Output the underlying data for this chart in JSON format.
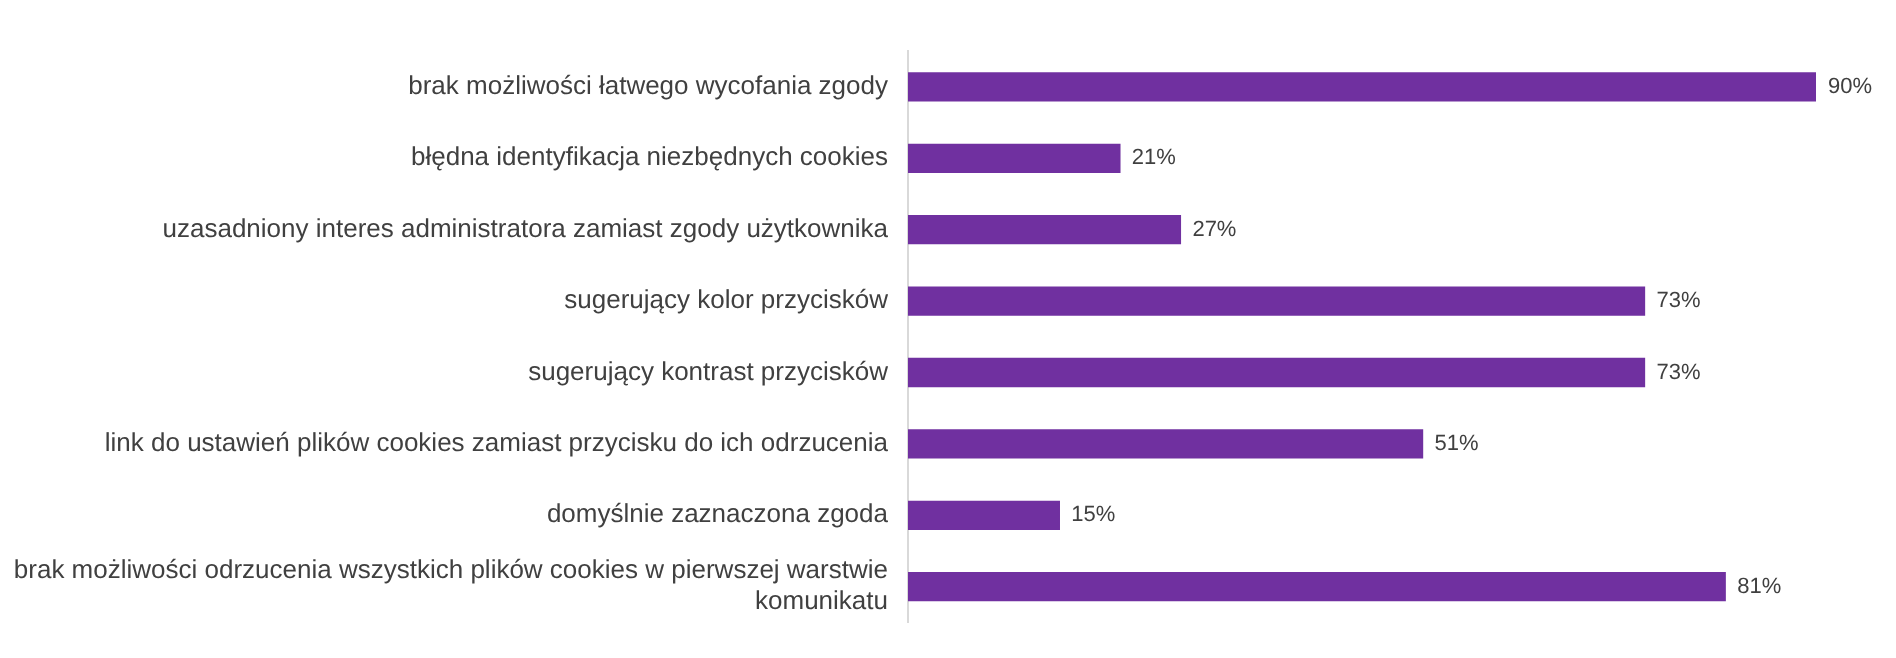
{
  "chart_data": {
    "type": "bar",
    "orientation": "horizontal",
    "categories": [
      "brak możliwości łatwego wycofania zgody",
      "błędna identyfikacja niezbędnych cookies",
      "uzasadniony interes administratora zamiast zgody użytkownika",
      "sugerujący kolor przycisków",
      "sugerujący kontrast przycisków",
      "link do ustawień plików cookies zamiast przycisku do ich odrzucenia",
      "domyślnie zaznaczona zgoda",
      "brak możliwości odrzucenia wszystkich plików cookies w pierwszej warstwie komunikatu"
    ],
    "values": [
      90,
      21,
      27,
      73,
      73,
      51,
      15,
      81
    ],
    "value_labels": [
      "90%",
      "21%",
      "27%",
      "73%",
      "73%",
      "51%",
      "15%",
      "81%"
    ],
    "color": "#7030a0",
    "tick_labels": "y",
    "grid": false,
    "legend": false
  }
}
